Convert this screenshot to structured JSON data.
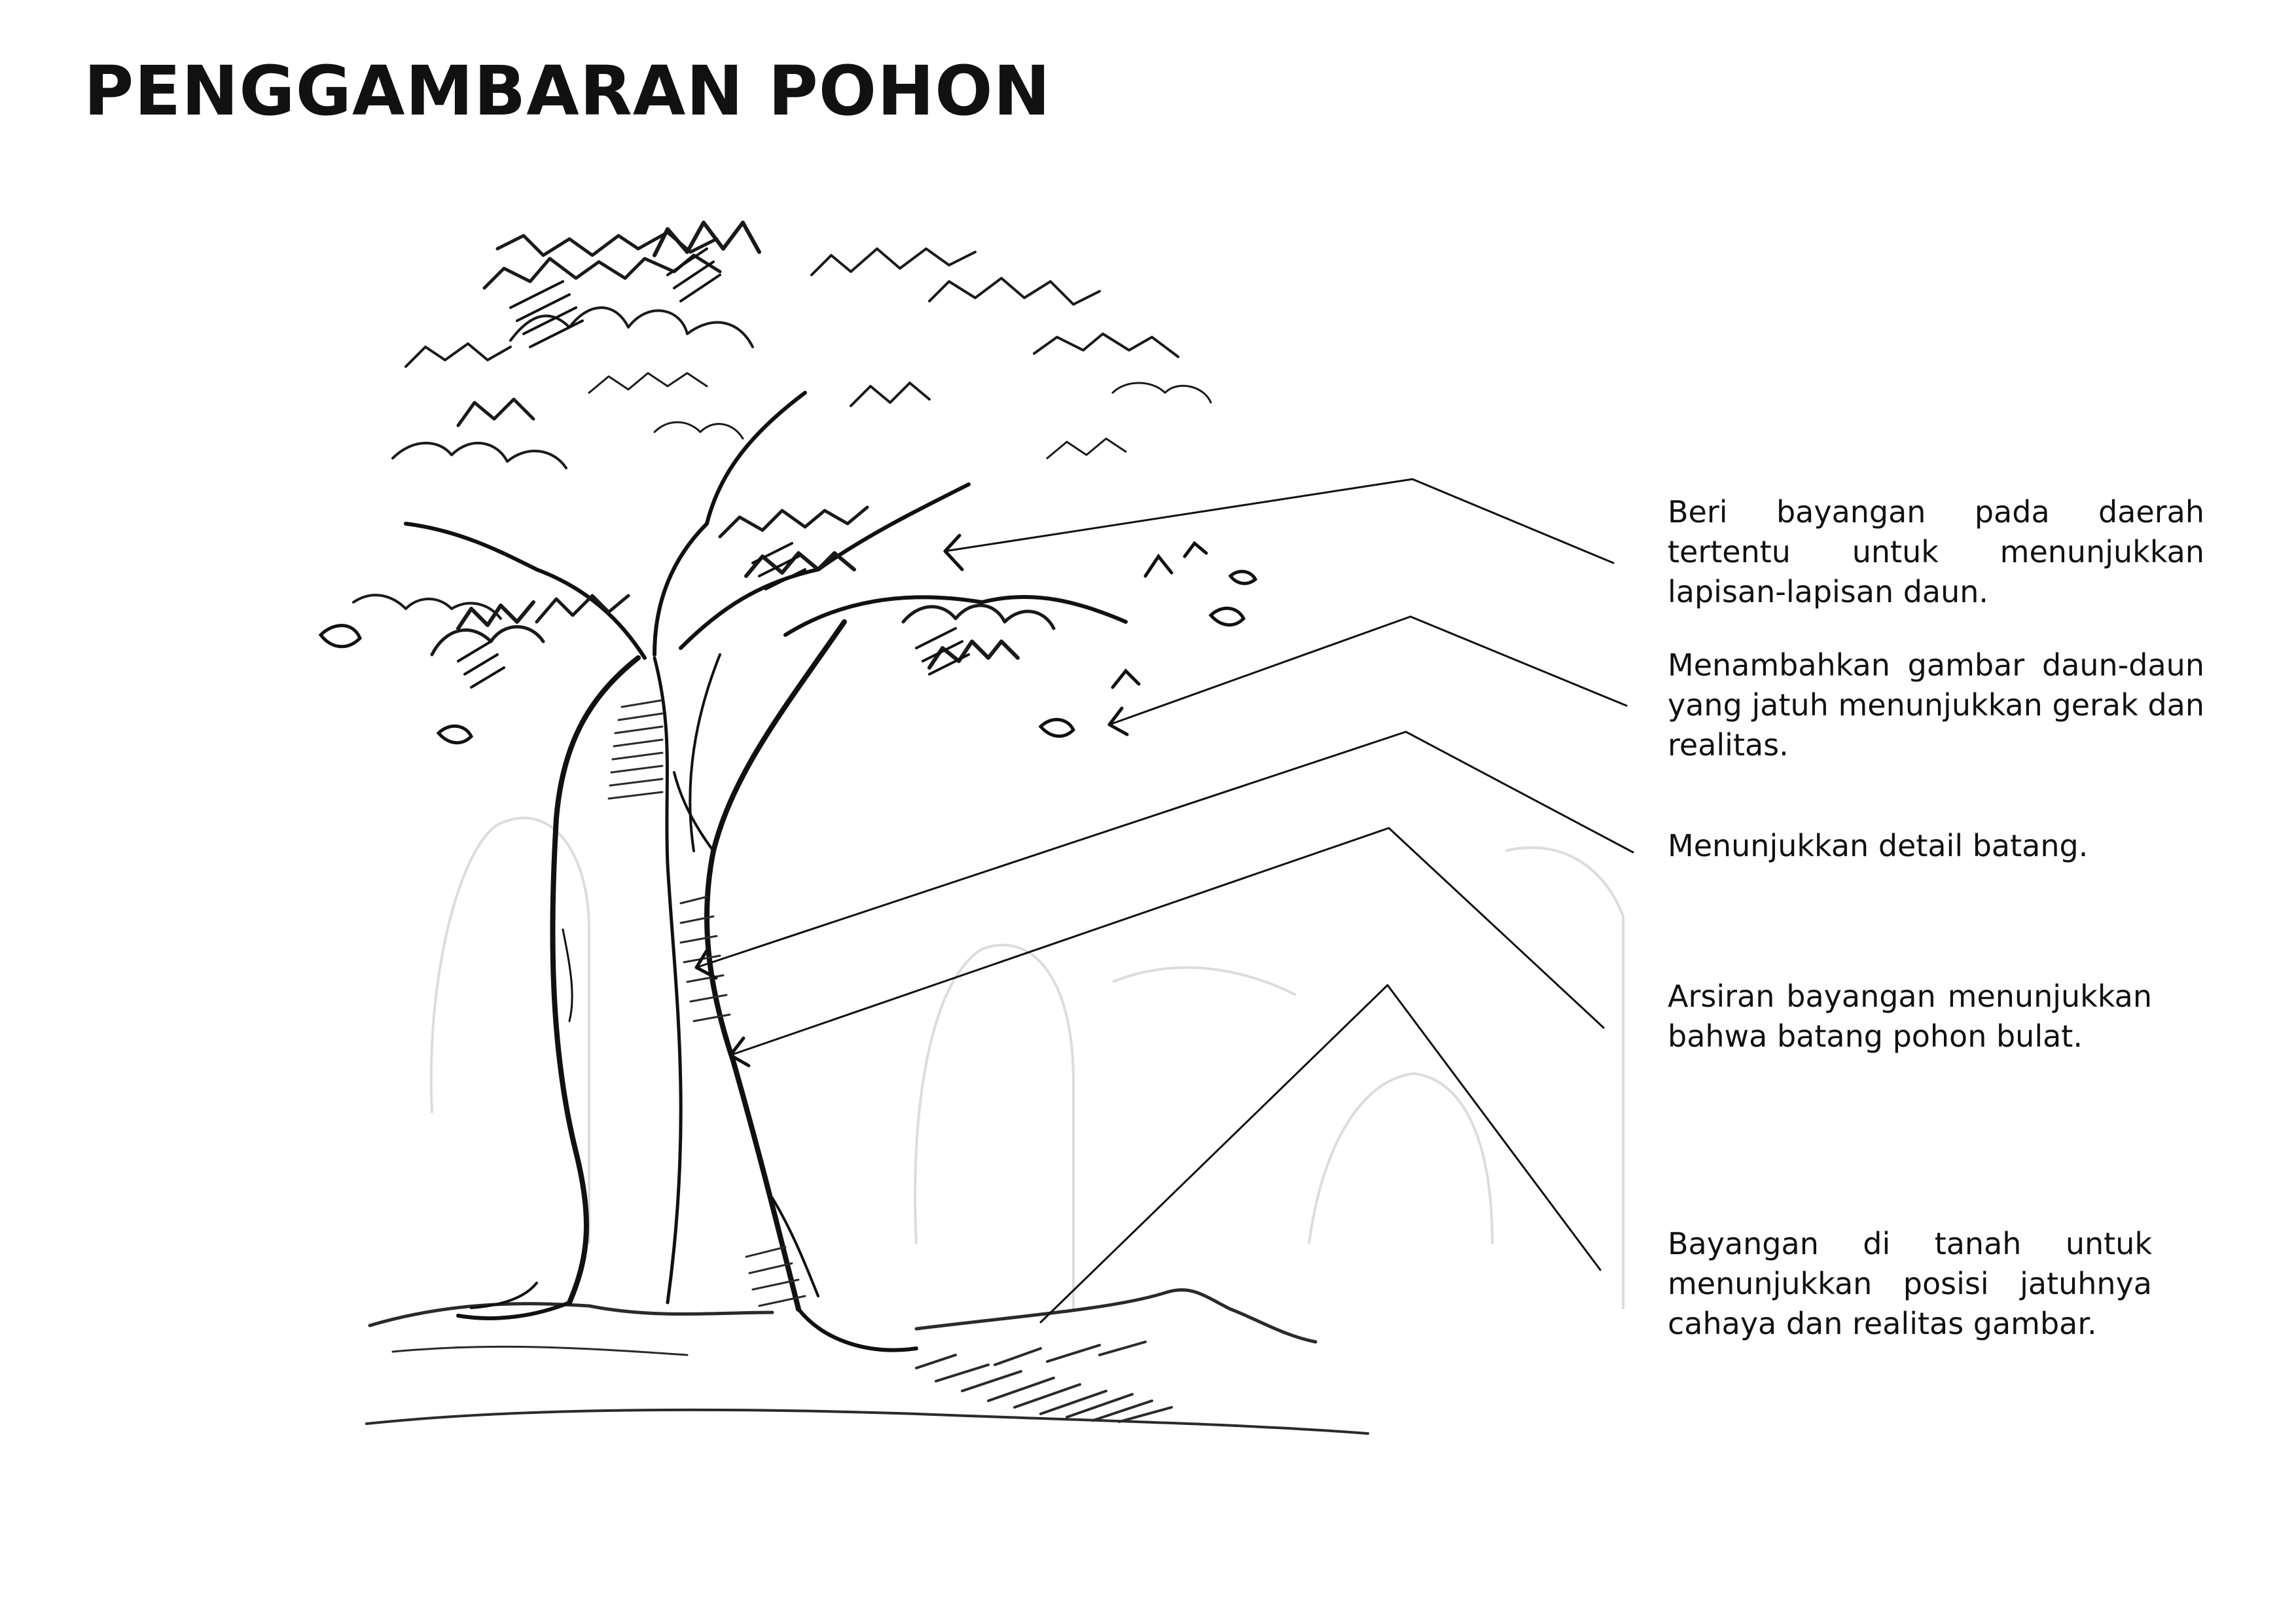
{
  "title": "PENGGAMBARAN POHON",
  "annotations": [
    {
      "id": "foliage-layers",
      "text": "Beri bayangan pada daerah tertentu untuk menunjukkan lapisan-lapisan daun."
    },
    {
      "id": "falling-leaves",
      "text": "Menambahkan gambar daun-daun yang jatuh menunjukkan gerak dan realitas."
    },
    {
      "id": "trunk-detail",
      "text": "Menunjukkan detail batang."
    },
    {
      "id": "trunk-shading",
      "text": "Arsiran bayangan menunjukkan bahwa batang pohon bulat."
    },
    {
      "id": "ground-shadow",
      "text": "Bayangan di tanah untuk menun­jukkan posisi jatuhnya cahaya dan realitas gambar."
    }
  ],
  "colors": {
    "ink": "#111111",
    "pencil": "#2a2a2a",
    "paper": "#ffffff",
    "ghost_sketch": "#d9d9d9"
  },
  "icons": [
    "tree-sketch",
    "arrowhead"
  ]
}
